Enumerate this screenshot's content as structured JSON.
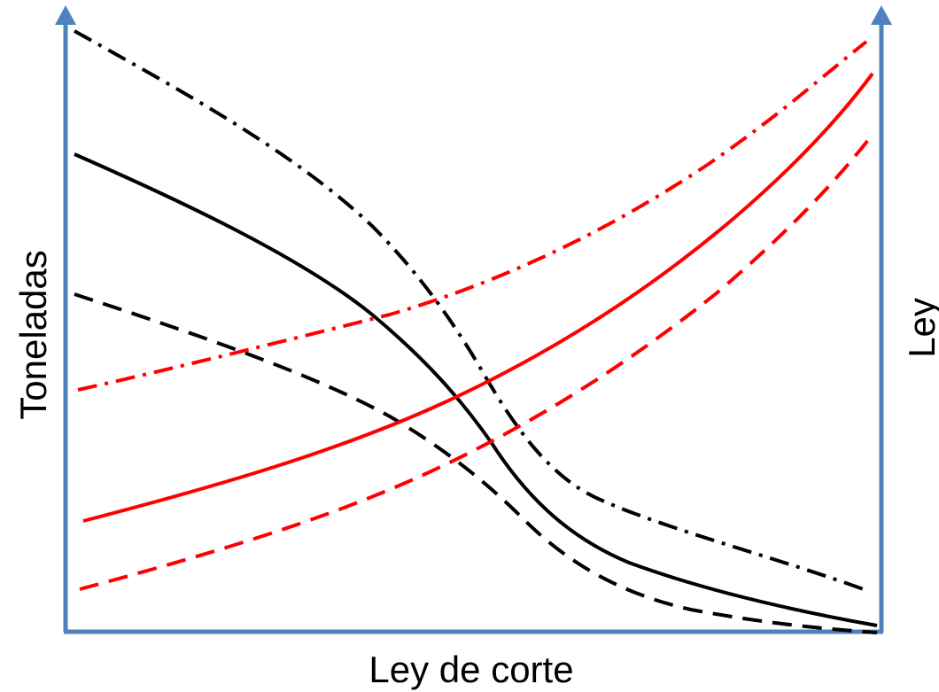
{
  "diagram": {
    "x_axis_label": "Ley de corte",
    "left_axis_label": "Toneladas",
    "right_axis_label": "Ley",
    "colors": {
      "axis": "#4f81bd",
      "tonnage_curves": "#000000",
      "grade_curves": "#ff0000"
    },
    "line_styles": [
      "solid",
      "dashed",
      "dash-dot"
    ]
  }
}
